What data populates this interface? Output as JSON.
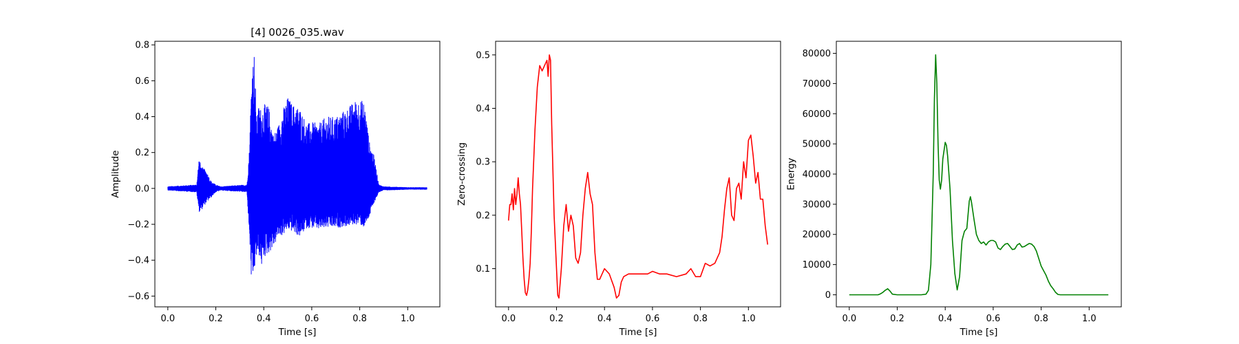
{
  "chart_data": [
    {
      "type": "line",
      "title": "[4] 0026_035.wav",
      "xlabel": "Time [s]",
      "ylabel": "Amplitude",
      "xlim": [
        -0.054,
        1.134
      ],
      "ylim": [
        -0.66,
        0.82
      ],
      "xticks": [
        0.0,
        0.2,
        0.4,
        0.6,
        0.8,
        1.0
      ],
      "xtick_labels": [
        "0.0",
        "0.2",
        "0.4",
        "0.6",
        "0.8",
        "1.0"
      ],
      "yticks": [
        -0.6,
        -0.4,
        -0.2,
        0.0,
        0.2,
        0.4,
        0.6,
        0.8
      ],
      "ytick_labels": [
        "−0.6",
        "−0.4",
        "−0.2",
        "0.0",
        "0.2",
        "0.4",
        "0.6",
        "0.8"
      ],
      "grid": false,
      "series": [
        {
          "color": "#0000ff",
          "style": "waveform",
          "envelope": {
            "t": [
              0.0,
              0.12,
              0.13,
              0.14,
              0.16,
              0.18,
              0.2,
              0.22,
              0.33,
              0.34,
              0.35,
              0.36,
              0.37,
              0.38,
              0.39,
              0.4,
              0.42,
              0.44,
              0.46,
              0.48,
              0.5,
              0.52,
              0.55,
              0.58,
              0.6,
              0.63,
              0.66,
              0.7,
              0.75,
              0.78,
              0.8,
              0.82,
              0.84,
              0.85,
              0.86,
              0.88,
              0.9,
              1.0,
              1.08
            ],
            "upper": [
              0.01,
              0.02,
              0.17,
              0.12,
              0.1,
              0.04,
              0.02,
              0.01,
              0.02,
              0.22,
              0.68,
              0.76,
              0.4,
              0.47,
              0.44,
              0.47,
              0.46,
              0.3,
              0.35,
              0.44,
              0.51,
              0.47,
              0.45,
              0.36,
              0.37,
              0.36,
              0.4,
              0.4,
              0.45,
              0.49,
              0.5,
              0.48,
              0.26,
              0.22,
              0.18,
              0.02,
              0.01,
              0.005,
              0.005
            ],
            "lower": [
              -0.01,
              -0.02,
              -0.13,
              -0.12,
              -0.08,
              -0.05,
              -0.02,
              -0.01,
              -0.02,
              -0.26,
              -0.57,
              -0.47,
              -0.38,
              -0.37,
              -0.44,
              -0.39,
              -0.36,
              -0.33,
              -0.27,
              -0.26,
              -0.23,
              -0.24,
              -0.27,
              -0.22,
              -0.22,
              -0.23,
              -0.22,
              -0.22,
              -0.21,
              -0.2,
              -0.2,
              -0.22,
              -0.16,
              -0.12,
              -0.08,
              -0.02,
              -0.01,
              -0.005,
              -0.005
            ]
          }
        }
      ]
    },
    {
      "type": "line",
      "title": "",
      "xlabel": "Time [s]",
      "ylabel": "Zero-crossing",
      "xlim": [
        -0.054,
        1.134
      ],
      "ylim": [
        0.0285,
        0.5255
      ],
      "xticks": [
        0.0,
        0.2,
        0.4,
        0.6,
        0.8,
        1.0
      ],
      "xtick_labels": [
        "0.0",
        "0.2",
        "0.4",
        "0.6",
        "0.8",
        "1.0"
      ],
      "yticks": [
        0.1,
        0.2,
        0.3,
        0.4,
        0.5
      ],
      "ytick_labels": [
        "0.1",
        "0.2",
        "0.3",
        "0.4",
        "0.5"
      ],
      "grid": false,
      "series": [
        {
          "color": "#ff0000",
          "x": [
            0.0,
            0.005,
            0.01,
            0.015,
            0.02,
            0.025,
            0.03,
            0.035,
            0.04,
            0.045,
            0.05,
            0.055,
            0.06,
            0.065,
            0.07,
            0.075,
            0.08,
            0.085,
            0.09,
            0.095,
            0.1,
            0.11,
            0.12,
            0.13,
            0.14,
            0.15,
            0.16,
            0.165,
            0.17,
            0.175,
            0.18,
            0.19,
            0.2,
            0.205,
            0.21,
            0.22,
            0.23,
            0.24,
            0.25,
            0.26,
            0.27,
            0.28,
            0.29,
            0.3,
            0.31,
            0.32,
            0.33,
            0.34,
            0.35,
            0.36,
            0.37,
            0.38,
            0.39,
            0.4,
            0.42,
            0.44,
            0.45,
            0.46,
            0.47,
            0.48,
            0.5,
            0.52,
            0.55,
            0.58,
            0.6,
            0.63,
            0.66,
            0.7,
            0.74,
            0.76,
            0.78,
            0.8,
            0.82,
            0.84,
            0.86,
            0.87,
            0.88,
            0.89,
            0.9,
            0.91,
            0.92,
            0.93,
            0.94,
            0.95,
            0.96,
            0.97,
            0.98,
            0.99,
            1.0,
            1.01,
            1.02,
            1.03,
            1.04,
            1.05,
            1.06,
            1.07,
            1.08
          ],
          "y": [
            0.19,
            0.22,
            0.22,
            0.24,
            0.21,
            0.25,
            0.22,
            0.24,
            0.27,
            0.24,
            0.22,
            0.17,
            0.12,
            0.08,
            0.055,
            0.05,
            0.06,
            0.08,
            0.11,
            0.17,
            0.25,
            0.36,
            0.44,
            0.48,
            0.47,
            0.48,
            0.49,
            0.46,
            0.5,
            0.49,
            0.37,
            0.2,
            0.1,
            0.05,
            0.045,
            0.1,
            0.18,
            0.22,
            0.17,
            0.2,
            0.18,
            0.12,
            0.11,
            0.13,
            0.2,
            0.25,
            0.28,
            0.24,
            0.22,
            0.13,
            0.08,
            0.08,
            0.09,
            0.1,
            0.09,
            0.065,
            0.045,
            0.05,
            0.075,
            0.085,
            0.09,
            0.09,
            0.09,
            0.09,
            0.095,
            0.09,
            0.09,
            0.085,
            0.09,
            0.1,
            0.085,
            0.085,
            0.11,
            0.105,
            0.11,
            0.12,
            0.13,
            0.16,
            0.21,
            0.25,
            0.27,
            0.2,
            0.19,
            0.25,
            0.26,
            0.23,
            0.3,
            0.27,
            0.34,
            0.35,
            0.31,
            0.26,
            0.28,
            0.23,
            0.23,
            0.18,
            0.145
          ]
        }
      ]
    },
    {
      "type": "line",
      "title": "",
      "xlabel": "Time [s]",
      "ylabel": "Energy",
      "xlim": [
        -0.054,
        1.134
      ],
      "ylim": [
        -4000,
        84000
      ],
      "xticks": [
        0.0,
        0.2,
        0.4,
        0.6,
        0.8,
        1.0
      ],
      "xtick_labels": [
        "0.0",
        "0.2",
        "0.4",
        "0.6",
        "0.8",
        "1.0"
      ],
      "yticks": [
        0,
        10000,
        20000,
        30000,
        40000,
        50000,
        60000,
        70000,
        80000
      ],
      "ytick_labels": [
        "0",
        "10000",
        "20000",
        "30000",
        "40000",
        "50000",
        "60000",
        "70000",
        "80000"
      ],
      "grid": false,
      "series": [
        {
          "color": "#008000",
          "x": [
            0.0,
            0.12,
            0.13,
            0.14,
            0.15,
            0.16,
            0.17,
            0.18,
            0.2,
            0.3,
            0.32,
            0.33,
            0.34,
            0.35,
            0.355,
            0.36,
            0.365,
            0.37,
            0.375,
            0.38,
            0.385,
            0.39,
            0.4,
            0.405,
            0.41,
            0.42,
            0.43,
            0.44,
            0.45,
            0.46,
            0.47,
            0.48,
            0.49,
            0.5,
            0.505,
            0.51,
            0.52,
            0.53,
            0.54,
            0.55,
            0.56,
            0.57,
            0.58,
            0.59,
            0.6,
            0.61,
            0.62,
            0.63,
            0.64,
            0.65,
            0.66,
            0.67,
            0.68,
            0.69,
            0.7,
            0.71,
            0.72,
            0.73,
            0.74,
            0.75,
            0.76,
            0.77,
            0.78,
            0.79,
            0.8,
            0.81,
            0.82,
            0.83,
            0.84,
            0.85,
            0.86,
            0.87,
            0.88,
            0.9,
            1.0,
            1.08
          ],
          "y": [
            0,
            0,
            300,
            800,
            1500,
            2000,
            1200,
            200,
            0,
            0,
            200,
            1500,
            10000,
            40000,
            65000,
            79500,
            70000,
            50000,
            38000,
            35000,
            38000,
            45000,
            50500,
            49500,
            46000,
            35000,
            18000,
            7000,
            1600,
            6000,
            18000,
            21000,
            22000,
            31000,
            32500,
            30500,
            25000,
            20000,
            18000,
            17000,
            17500,
            16500,
            17500,
            18000,
            18000,
            17500,
            15500,
            15000,
            16000,
            16800,
            17000,
            16000,
            15000,
            15200,
            16500,
            17000,
            15800,
            16000,
            16500,
            17000,
            16800,
            16000,
            14500,
            12000,
            9500,
            8000,
            6500,
            4500,
            3000,
            2000,
            800,
            100,
            0,
            0,
            0,
            0
          ]
        }
      ]
    }
  ]
}
